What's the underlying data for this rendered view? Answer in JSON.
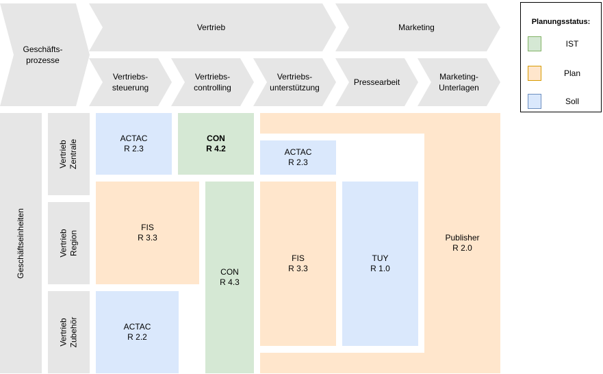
{
  "header": {
    "geschaeftsprozesse": "Geschäfts-\nprozesse",
    "vertrieb": "Vertrieb",
    "marketing": "Marketing",
    "sub": [
      "Vertriebs-\nsteuerung",
      "Vertriebs-\ncontrolling",
      "Vertriebs-\nunterstützung",
      "Pressearbeit",
      "Marketing-\nUnterlagen"
    ]
  },
  "rows": {
    "geschaeftseinheiten": "Geschäftseinheiten",
    "zentrale": "Vertrieb\nZentrale",
    "region": "Vertrieb\nRegion",
    "zubehoer": "Vertrieb\nZubehör"
  },
  "cells": {
    "actac_r23_a": "ACTAC\nR 2.3",
    "con_r42": "CON\nR 4.2",
    "actac_r23_b": "ACTAC\nR 2.3",
    "fis_r33_a": "FIS\nR 3.3",
    "con_r43": "CON\nR 4.3",
    "fis_r33_b": "FIS\nR 3.3",
    "tuy_r10": "TUY\nR 1.0",
    "publisher_r20": "Publisher\nR 2.0",
    "actac_r22": "ACTAC\nR 2.2"
  },
  "legend": {
    "title": "Planungsstatus:",
    "items": [
      {
        "label": "IST",
        "fill": "#d5e8d4",
        "stroke": "#82b366"
      },
      {
        "label": "Plan",
        "fill": "#ffe6cc",
        "stroke": "#d79b00"
      },
      {
        "label": "Soll",
        "fill": "#dae8fc",
        "stroke": "#6c8ebf"
      }
    ]
  },
  "colors": {
    "ist": "#d5e8d4",
    "plan": "#ffe6cc",
    "soll": "#dae8fc",
    "grey": "#e6e6e6"
  }
}
